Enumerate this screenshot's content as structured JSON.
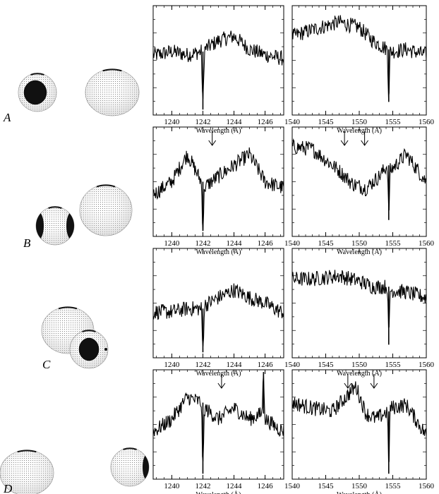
{
  "figure": {
    "rows": [
      {
        "label": "A",
        "arrows_left": [],
        "arrows_right": []
      },
      {
        "label": "B",
        "arrows_left": [
          1242.6
        ],
        "arrows_right": [
          1547.8,
          1550.8
        ]
      },
      {
        "label": "C",
        "arrows_left": [],
        "arrows_right": []
      },
      {
        "label": "D",
        "arrows_left": [
          1243.2
        ],
        "arrows_right": [
          1548.3,
          1552.2
        ]
      }
    ],
    "left_panel": {
      "xlabel": "Wavelength (Å)",
      "xlim": [
        1238.8,
        1247.2
      ],
      "ticks": [
        1240,
        1242,
        1244,
        1246
      ],
      "tick_labels": [
        "1240",
        "1242",
        "1244",
        "1246"
      ]
    },
    "right_panel": {
      "xlabel": "Wavelength (Å)",
      "xlim": [
        1540,
        1560
      ],
      "ticks": [
        1540,
        1545,
        1550,
        1555,
        1560
      ],
      "tick_labels": [
        "1540",
        "1545",
        "1550",
        "1555",
        "1560"
      ]
    }
  },
  "chart_data": [
    {
      "type": "line",
      "panel": "A-left",
      "xlabel": "Wavelength (Å)",
      "x_range": [
        1238.8,
        1247.2
      ],
      "y_range": [
        0,
        1
      ],
      "series": [
        {
          "x": [
            1239.0,
            1240.0,
            1241.0,
            1241.9,
            1242.0,
            1242.1,
            1243.0,
            1244.0,
            1245.0,
            1246.0,
            1247.0
          ],
          "values": [
            0.55,
            0.58,
            0.55,
            0.58,
            0.05,
            0.6,
            0.68,
            0.72,
            0.6,
            0.55,
            0.52
          ]
        }
      ]
    },
    {
      "type": "line",
      "panel": "A-right",
      "xlabel": "Wavelength (Å)",
      "x_range": [
        1540,
        1560
      ],
      "y_range": [
        0,
        1
      ],
      "series": [
        {
          "x": [
            1540,
            1543,
            1547,
            1550,
            1552,
            1554.2,
            1554.4,
            1554.6,
            1557,
            1560
          ],
          "values": [
            0.72,
            0.78,
            0.85,
            0.8,
            0.68,
            0.6,
            0.12,
            0.58,
            0.6,
            0.55
          ]
        }
      ]
    },
    {
      "type": "line",
      "panel": "B-left",
      "xlabel": "Wavelength (Å)",
      "x_range": [
        1238.8,
        1247.2
      ],
      "y_range": [
        0,
        1
      ],
      "series": [
        {
          "x": [
            1239.0,
            1240.0,
            1241.0,
            1241.9,
            1242.0,
            1242.1,
            1243.0,
            1244.0,
            1245.0,
            1246.0,
            1247.0
          ],
          "values": [
            0.4,
            0.5,
            0.75,
            0.5,
            0.05,
            0.45,
            0.55,
            0.65,
            0.75,
            0.5,
            0.45
          ]
        }
      ]
    },
    {
      "type": "line",
      "panel": "B-right",
      "xlabel": "Wavelength (Å)",
      "x_range": [
        1540,
        1560
      ],
      "y_range": [
        0,
        1
      ],
      "series": [
        {
          "x": [
            1540,
            1543,
            1547,
            1549,
            1551,
            1553,
            1554.2,
            1554.4,
            1554.6,
            1557,
            1560
          ],
          "values": [
            0.82,
            0.8,
            0.6,
            0.48,
            0.44,
            0.55,
            0.65,
            0.15,
            0.6,
            0.75,
            0.5
          ]
        }
      ]
    },
    {
      "type": "line",
      "panel": "C-left",
      "xlabel": "Wavelength (Å)",
      "x_range": [
        1238.8,
        1247.2
      ],
      "y_range": [
        0,
        1
      ],
      "series": [
        {
          "x": [
            1239.0,
            1240.0,
            1241.0,
            1241.9,
            1242.0,
            1242.1,
            1243.0,
            1244.0,
            1245.0,
            1246.0,
            1247.0
          ],
          "values": [
            0.42,
            0.42,
            0.45,
            0.45,
            0.05,
            0.48,
            0.55,
            0.62,
            0.55,
            0.5,
            0.42
          ]
        }
      ]
    },
    {
      "type": "line",
      "panel": "C-right",
      "xlabel": "Wavelength (Å)",
      "x_range": [
        1540,
        1560
      ],
      "y_range": [
        0,
        1
      ],
      "series": [
        {
          "x": [
            1540,
            1543,
            1547,
            1550,
            1552,
            1554.2,
            1554.4,
            1554.6,
            1557,
            1560
          ],
          "values": [
            0.72,
            0.72,
            0.75,
            0.7,
            0.65,
            0.65,
            0.12,
            0.62,
            0.6,
            0.55
          ]
        }
      ]
    },
    {
      "type": "line",
      "panel": "D-left",
      "xlabel": "Wavelength (Å)",
      "x_range": [
        1238.8,
        1247.2
      ],
      "y_range": [
        0,
        1
      ],
      "series": [
        {
          "x": [
            1239.0,
            1240.0,
            1241.0,
            1241.9,
            1242.0,
            1242.1,
            1243.0,
            1244.0,
            1245.0,
            1245.8,
            1245.9,
            1246.0,
            1247.0
          ],
          "values": [
            0.45,
            0.55,
            0.75,
            0.7,
            0.05,
            0.65,
            0.55,
            0.65,
            0.55,
            0.6,
            0.98,
            0.55,
            0.45
          ]
        }
      ]
    },
    {
      "type": "line",
      "panel": "D-right",
      "xlabel": "Wavelength (Å)",
      "x_range": [
        1540,
        1560
      ],
      "y_range": [
        0,
        1
      ],
      "series": [
        {
          "x": [
            1540,
            1543,
            1546,
            1548,
            1549.5,
            1551,
            1552.5,
            1554.2,
            1554.4,
            1554.6,
            1557,
            1560
          ],
          "values": [
            0.7,
            0.65,
            0.62,
            0.75,
            0.85,
            0.6,
            0.55,
            0.62,
            0.05,
            0.65,
            0.68,
            0.4
          ]
        }
      ]
    }
  ]
}
